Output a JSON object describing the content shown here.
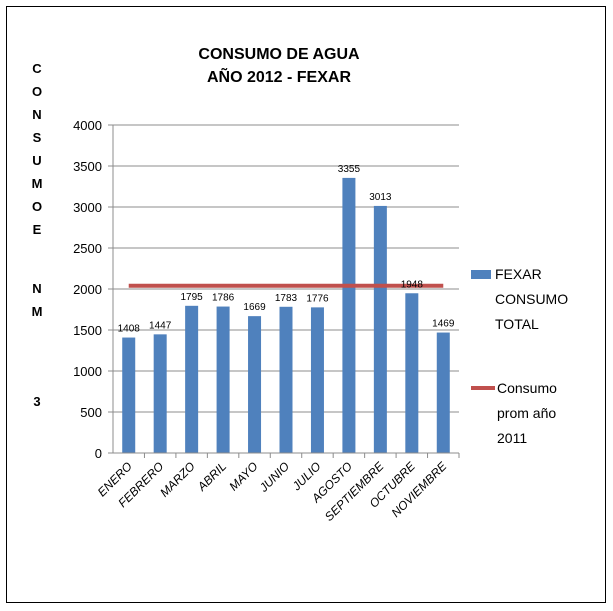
{
  "chart_data": {
    "type": "bar",
    "title": [
      "CONSUMO DE AGUA",
      "AÑO 2012 - FEXAR"
    ],
    "ylabel": "CONSUMO EN M3",
    "xlabel": "",
    "categories": [
      "ENERO",
      "FEBRERO",
      "MARZO",
      "ABRIL",
      "MAYO",
      "JUNIO",
      "JULIO",
      "AGOSTO",
      "SEPTIEMBRE",
      "OCTUBRE",
      "NOVIEMBRE"
    ],
    "series": [
      {
        "name": "FEXAR CONSUMO TOTAL",
        "type": "bar",
        "color": "#4f81bd",
        "values": [
          1408,
          1447,
          1795,
          1786,
          1669,
          1783,
          1776,
          3355,
          3013,
          1948,
          1469
        ],
        "labels": [
          "1408",
          "1447",
          "1795",
          "1786",
          "1669",
          "1783",
          "1776",
          "3355",
          "3013",
          "1948",
          "1469"
        ]
      },
      {
        "name": "Consumo prom año 2011",
        "type": "line",
        "color": "#c0504d",
        "value": 2040
      }
    ],
    "ylim": [
      0,
      4000
    ],
    "yticks": [
      0,
      500,
      1000,
      1500,
      2000,
      2500,
      3000,
      3500,
      4000
    ],
    "grid": true,
    "legend": {
      "placement": "right",
      "entries": [
        [
          "FEXAR",
          "CONSUMO",
          "TOTAL"
        ],
        [
          "Consumo",
          "prom año",
          "2011"
        ]
      ]
    }
  }
}
